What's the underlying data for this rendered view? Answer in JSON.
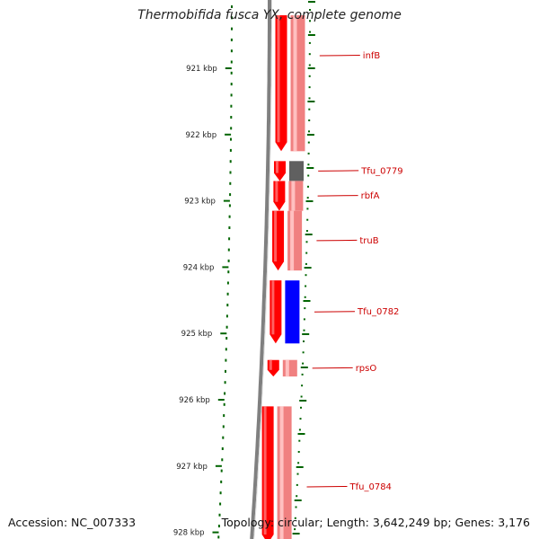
{
  "title": "Thermobifida fusca YX, complete genome",
  "accession": "Accession: NC_007333",
  "summary": "Topology: circular; Length: 3,642,249 bp; Genes: 3,176",
  "colors": {
    "backbone": "#808080",
    "ruler": "#006400",
    "strand_cds": "#ff0000",
    "cds_light": "#f08080",
    "rna_gene": "#606060",
    "other_gene": "#0000ff",
    "label": "#cc0000"
  },
  "ruler": {
    "unit": "kbp",
    "ticks": [
      "921 kbp",
      "922 kbp",
      "923 kbp",
      "924 kbp",
      "925 kbp",
      "926 kbp",
      "927 kbp",
      "928 kbp"
    ]
  },
  "features": [
    {
      "label": "infB",
      "start_kbp": 920.2,
      "end_kbp": 922.25,
      "track": "cds",
      "strand": "forward"
    },
    {
      "label": "Tfu_0779",
      "start_kbp": 922.4,
      "end_kbp": 922.7,
      "track": "rna",
      "strand": "forward"
    },
    {
      "label": "rbfA",
      "start_kbp": 922.7,
      "end_kbp": 923.15,
      "track": "cds",
      "strand": "forward"
    },
    {
      "label": "truB",
      "start_kbp": 923.15,
      "end_kbp": 924.05,
      "track": "cds",
      "strand": "forward"
    },
    {
      "label": "Tfu_0782",
      "start_kbp": 924.2,
      "end_kbp": 925.15,
      "track": "other",
      "strand": "forward"
    },
    {
      "label": "rpsO",
      "start_kbp": 925.4,
      "end_kbp": 925.65,
      "track": "cds",
      "strand": "forward"
    },
    {
      "label": "Tfu_0784",
      "start_kbp": 926.1,
      "end_kbp": 928.2,
      "track": "cds",
      "strand": "forward"
    }
  ]
}
